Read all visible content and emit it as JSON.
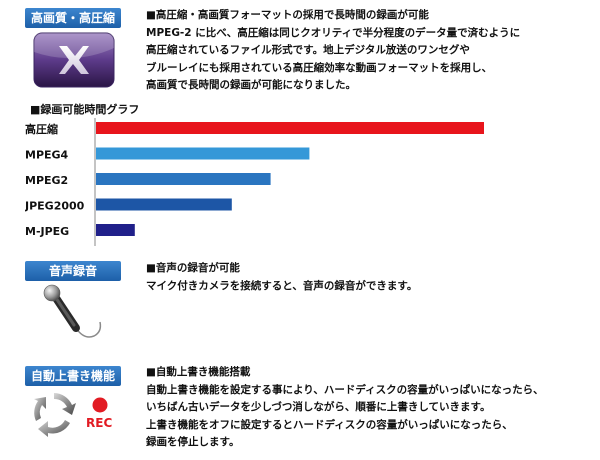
{
  "section1": {
    "badge": "高画質・高圧縮",
    "heading": "■高圧縮・高画質フォーマットの採用で長時間の録画が可能",
    "lines": [
      "MPEG-2 に比べ、高圧縮は同じクオリティで半分程度のデータ量で済むように",
      "高圧縮されているファイル形式です。地上デジタル放送のワンセグや",
      "ブルーレイにも採用されている高圧縮効率な動画フォーマットを採用し、",
      "高画質で長時間の録画が可能になりました。"
    ],
    "icon": "x-video-app-icon"
  },
  "chart_data": {
    "type": "bar",
    "orientation": "horizontal",
    "title": "■録画可能時間グラフ",
    "categories": [
      "高圧縮",
      "MPEG4",
      "MPEG2",
      "JPEG2000",
      "M-JPEG"
    ],
    "values": [
      100,
      55,
      45,
      35,
      10
    ],
    "colors": [
      "#e8151c",
      "#3598d8",
      "#2a75c0",
      "#1d56a6",
      "#20208a"
    ],
    "xlim": [
      0,
      100
    ],
    "xlabel": "",
    "ylabel": ""
  },
  "section2": {
    "badge": "音声録音",
    "heading": "■音声の録音が可能",
    "lines": [
      "マイク付きカメラを接続すると、音声の録音ができます。"
    ],
    "icon": "microphone-icon"
  },
  "section3": {
    "badge": "自動上書き機能",
    "heading": "■自動上書き機能搭載",
    "lines": [
      "自動上書き機能を設定する事により、ハードディスクの容量がいっぱいになったら、",
      "いちばん古いデータを少しづつ消しながら、順番に上書きしていきます。",
      "上書き機能をオフに設定するとハードディスクの容量がいっぱいになったら、",
      "録画を停止します。"
    ],
    "icon": "recycle-arrows-icon",
    "rec_label": "REC"
  },
  "colors": {
    "badge_top": "#3d86cf",
    "badge_bottom": "#1d5fa8",
    "rec_red": "#e21b23"
  }
}
